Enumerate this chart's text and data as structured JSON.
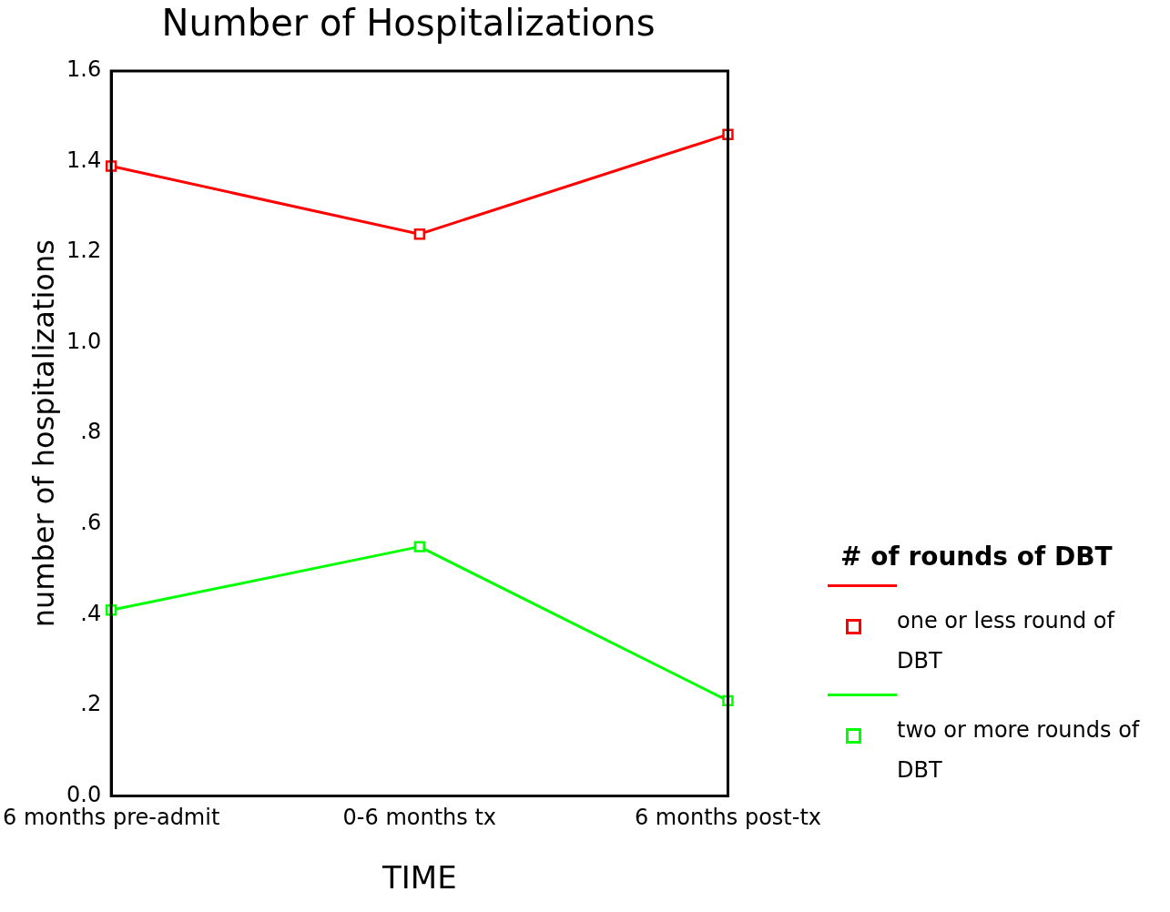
{
  "chart_data": {
    "type": "line",
    "title": "Number of Hospitalizations",
    "xlabel": "TIME",
    "ylabel": "number of hospitalizations",
    "legend_title": "# of rounds of DBT",
    "categories": [
      "6 months pre-admit",
      "0-6 months tx",
      "6 months post-tx"
    ],
    "series": [
      {
        "name": "one or less round of DBT",
        "color": "#ff0000",
        "values": [
          1.39,
          1.24,
          1.46
        ]
      },
      {
        "name": "two or more rounds of DBT",
        "color": "#00ff00",
        "values": [
          0.41,
          0.55,
          0.21
        ]
      }
    ],
    "ylim": [
      0,
      1.6
    ],
    "yticks": [
      {
        "value": 0,
        "label": "0.0"
      },
      {
        "value": 0.2,
        "label": ".2"
      },
      {
        "value": 0.4,
        "label": ".4"
      },
      {
        "value": 0.6,
        "label": ".6"
      },
      {
        "value": 0.8,
        "label": ".8"
      },
      {
        "value": 1,
        "label": "1.0"
      },
      {
        "value": 1.2,
        "label": "1.2"
      },
      {
        "value": 1.4,
        "label": "1.4"
      },
      {
        "value": 1.6,
        "label": "1.6"
      }
    ],
    "grid": false,
    "legend": "right",
    "marker": "square",
    "line_style": "solid"
  }
}
